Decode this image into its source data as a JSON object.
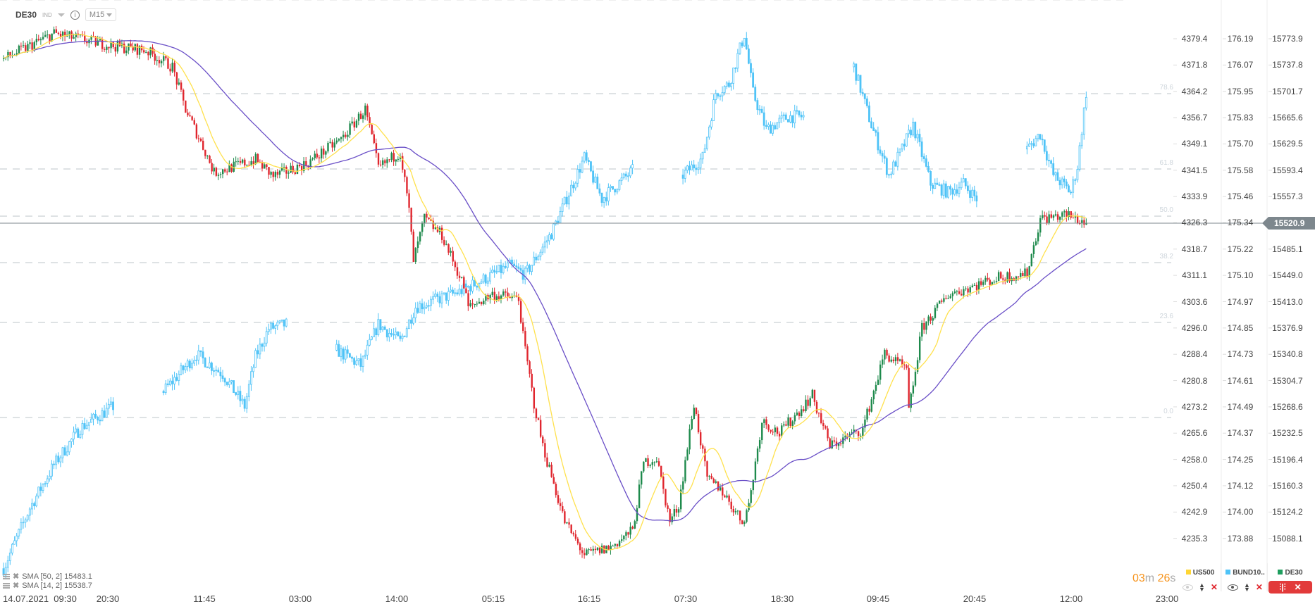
{
  "header": {
    "symbol": "DE30",
    "type": "IND",
    "info": "i",
    "timeframe": "M15"
  },
  "axes": {
    "us500": [
      "4379.4",
      "4371.8",
      "4364.2",
      "4356.7",
      "4349.1",
      "4341.5",
      "4333.9",
      "4326.3",
      "4318.7",
      "4311.1",
      "4303.6",
      "4296.0",
      "4288.4",
      "4280.8",
      "4273.2",
      "4265.6",
      "4258.0",
      "4250.4",
      "4242.9",
      "4235.3"
    ],
    "bund": [
      "176.19",
      "176.07",
      "175.95",
      "175.83",
      "175.70",
      "175.58",
      "175.46",
      "175.34",
      "175.22",
      "175.10",
      "174.97",
      "174.85",
      "174.73",
      "174.61",
      "174.49",
      "174.37",
      "174.25",
      "174.12",
      "174.00",
      "173.88"
    ],
    "de30": [
      "15773.9",
      "15737.8",
      "15701.7",
      "15665.6",
      "15629.5",
      "15593.4",
      "15557.3",
      "15520.9",
      "15485.1",
      "15449.0",
      "15413.0",
      "15376.9",
      "15340.8",
      "15304.7",
      "15268.6",
      "15232.5",
      "15196.4",
      "15160.3",
      "15124.2",
      "15088.1"
    ]
  },
  "current_price": "15520.9",
  "fib_levels": [
    "78.6",
    "61.8",
    "50.0",
    "38.2",
    "23.6",
    "0.0"
  ],
  "time_labels": [
    "14.07.2021  09:30",
    "20:30",
    "11:45",
    "03:00",
    "14:00",
    "05:15",
    "16:15",
    "07:30",
    "18:30",
    "09:45",
    "20:45",
    "12:00",
    "23:00"
  ],
  "indicators": [
    {
      "label": "SMA  [50,  2] 15483.1",
      "color": "#6a4fc7"
    },
    {
      "label": "SMA  [14,  2] 15538.7",
      "color": "#ffe14d"
    }
  ],
  "timer": {
    "m": "03",
    "m_unit": "m",
    "s": "26",
    "s_unit": "s"
  },
  "legend": [
    {
      "name": "US500",
      "color": "#ffd633",
      "visible": false
    },
    {
      "name": "BUND10..",
      "color": "#4fc3f7",
      "visible": true
    },
    {
      "name": "DE30",
      "color": "#1e9e5e",
      "visible": true
    }
  ],
  "chart_data": {
    "type": "candlestick",
    "title": "DE30 M15",
    "x_unit": "bar index (15-minute bars)",
    "series": [
      {
        "name": "DE30",
        "axis": "de30",
        "up_color": "#1e8a4c",
        "down_color": "#e0262e",
        "path": [
          [
            0,
            15746
          ],
          [
            23,
            15781
          ],
          [
            50,
            15764
          ],
          [
            65,
            15758
          ],
          [
            77,
            15735
          ],
          [
            83,
            15677
          ],
          [
            92,
            15619
          ],
          [
            96,
            15590
          ],
          [
            115,
            15608
          ],
          [
            123,
            15585
          ],
          [
            138,
            15602
          ],
          [
            154,
            15636
          ],
          [
            165,
            15677
          ],
          [
            171,
            15596
          ],
          [
            181,
            15619
          ],
          [
            185,
            15538
          ],
          [
            187,
            15469
          ],
          [
            192,
            15527
          ],
          [
            200,
            15504
          ],
          [
            210,
            15434
          ],
          [
            212,
            15405
          ],
          [
            223,
            15423
          ],
          [
            235,
            15417
          ],
          [
            237,
            15365
          ],
          [
            242,
            15273
          ],
          [
            246,
            15215
          ],
          [
            256,
            15111
          ],
          [
            265,
            15065
          ],
          [
            277,
            15076
          ],
          [
            287,
            15099
          ],
          [
            292,
            15192
          ],
          [
            298,
            15198
          ],
          [
            304,
            15111
          ],
          [
            308,
            15134
          ],
          [
            315,
            15273
          ],
          [
            321,
            15169
          ],
          [
            327,
            15157
          ],
          [
            337,
            15111
          ],
          [
            340,
            15134
          ],
          [
            346,
            15250
          ],
          [
            354,
            15232
          ],
          [
            369,
            15284
          ],
          [
            377,
            15215
          ],
          [
            385,
            15227
          ],
          [
            392,
            15238
          ],
          [
            402,
            15342
          ],
          [
            412,
            15319
          ],
          [
            413,
            15261
          ],
          [
            419,
            15377
          ],
          [
            431,
            15423
          ],
          [
            442,
            15434
          ],
          [
            454,
            15446
          ],
          [
            467,
            15452
          ],
          [
            473,
            15527
          ],
          [
            485,
            15532
          ],
          [
            494,
            15521
          ]
        ]
      },
      {
        "name": "BUND10Y",
        "axis": "bund",
        "color": "#4fc3f7",
        "segments": [
          [
            [
              0,
              173.74
            ],
            [
              12,
              174.02
            ],
            [
              23,
              174.22
            ],
            [
              35,
              174.39
            ],
            [
              50,
              174.49
            ]
          ],
          [
            [
              73,
              174.56
            ],
            [
              88,
              174.73
            ],
            [
              100,
              174.64
            ],
            [
              110,
              174.49
            ],
            [
              115,
              174.72
            ],
            [
              121,
              174.85
            ],
            [
              129,
              174.87
            ]
          ],
          [
            [
              152,
              174.75
            ],
            [
              163,
              174.68
            ],
            [
              171,
              174.87
            ],
            [
              181,
              174.79
            ],
            [
              188,
              174.95
            ],
            [
              208,
              175.02
            ],
            [
              231,
              175.14
            ],
            [
              238,
              175.1
            ],
            [
              250,
              175.29
            ],
            [
              265,
              175.64
            ],
            [
              273,
              175.45
            ],
            [
              287,
              175.58
            ]
          ],
          [
            [
              310,
              175.56
            ],
            [
              319,
              175.64
            ],
            [
              325,
              175.94
            ],
            [
              331,
              175.98
            ],
            [
              338,
              176.21
            ],
            [
              342,
              175.94
            ],
            [
              348,
              175.77
            ],
            [
              358,
              175.83
            ],
            [
              365,
              175.83
            ]
          ],
          [
            [
              388,
              176.06
            ],
            [
              396,
              175.79
            ],
            [
              404,
              175.56
            ],
            [
              410,
              175.68
            ],
            [
              415,
              175.79
            ],
            [
              423,
              175.52
            ],
            [
              431,
              175.48
            ],
            [
              438,
              175.52
            ],
            [
              444,
              175.45
            ]
          ],
          [
            [
              467,
              175.68
            ],
            [
              473,
              175.75
            ],
            [
              479,
              175.56
            ],
            [
              487,
              175.48
            ],
            [
              490,
              175.6
            ],
            [
              494,
              175.94
            ]
          ]
        ]
      }
    ],
    "sma": [
      {
        "period": 50,
        "color": "#6a4fc7"
      },
      {
        "period": 14,
        "color": "#ffe14d"
      }
    ],
    "de30_range": [
      15088.1,
      15773.9
    ],
    "bund_range": [
      173.88,
      176.19
    ],
    "us500_range": [
      4235.3,
      4379.4
    ]
  }
}
